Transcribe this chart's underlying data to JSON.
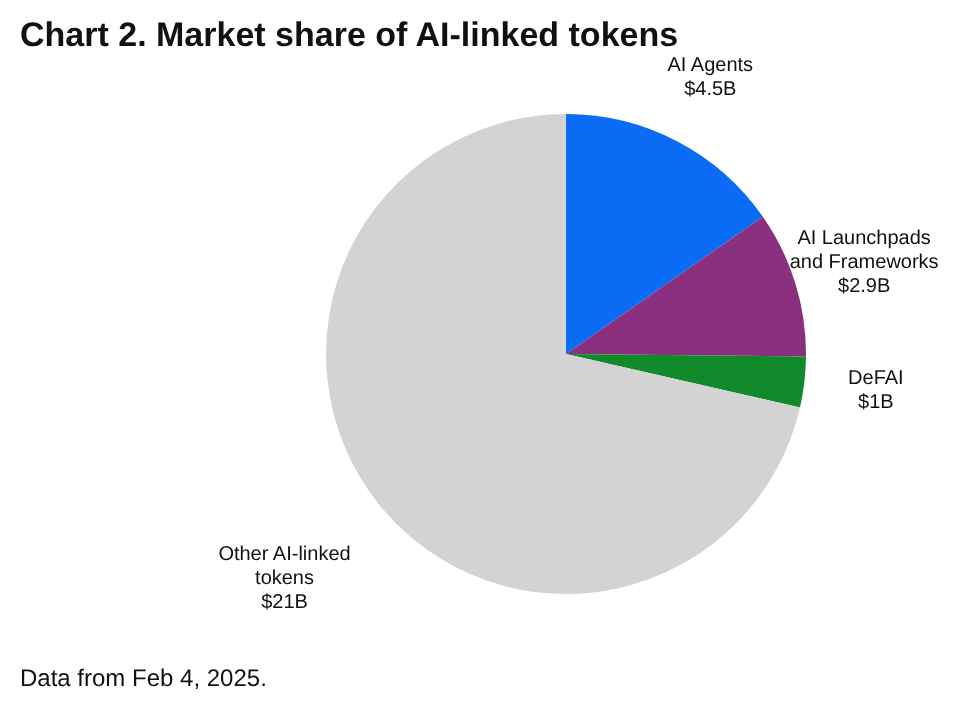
{
  "chart_data": {
    "type": "pie",
    "title": "Chart 2. Market share of AI-linked tokens",
    "categories": [
      "AI Agents",
      "AI Launchpads and Frameworks",
      "DeFAI",
      "Other AI-linked tokens"
    ],
    "values": [
      4.5,
      2.9,
      1,
      21
    ],
    "value_labels": [
      "$4.5B",
      "$2.9B",
      "$1B",
      "$21B"
    ],
    "colors": [
      "#0a6cf5",
      "#8b2f7f",
      "#108a2a",
      "#d3d3d3"
    ],
    "annotations": [
      "Data from Feb 4, 2025."
    ],
    "legend": false
  }
}
